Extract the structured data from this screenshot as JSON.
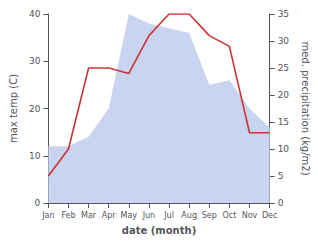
{
  "chart_data": {
    "type": "line",
    "categories": [
      "Jan",
      "Feb",
      "Mar",
      "Apr",
      "May",
      "Jun",
      "Jul",
      "Aug",
      "Sep",
      "Oct",
      "Nov",
      "Dec"
    ],
    "xlabel": "date (month)",
    "ylabel": "max temp (C)",
    "y2label": "med. precipitation (kg/m2)",
    "ylim": [
      0,
      40
    ],
    "yticks": [
      0,
      10,
      20,
      30,
      40
    ],
    "y2lim": [
      0,
      35
    ],
    "y2ticks": [
      0,
      5,
      10,
      15,
      20,
      25,
      30,
      35
    ],
    "grid": false,
    "series": [
      {
        "type": "area",
        "color": "#c8d4f0",
        "values": [
          12,
          12,
          14,
          20,
          40,
          38,
          37,
          36,
          25,
          26,
          20,
          16
        ]
      },
      {
        "type": "line",
        "color": "#cc3333",
        "axis": "y2",
        "values": [
          5,
          10,
          25,
          25,
          24,
          31,
          35,
          35,
          31,
          29,
          13,
          13
        ]
      }
    ]
  }
}
